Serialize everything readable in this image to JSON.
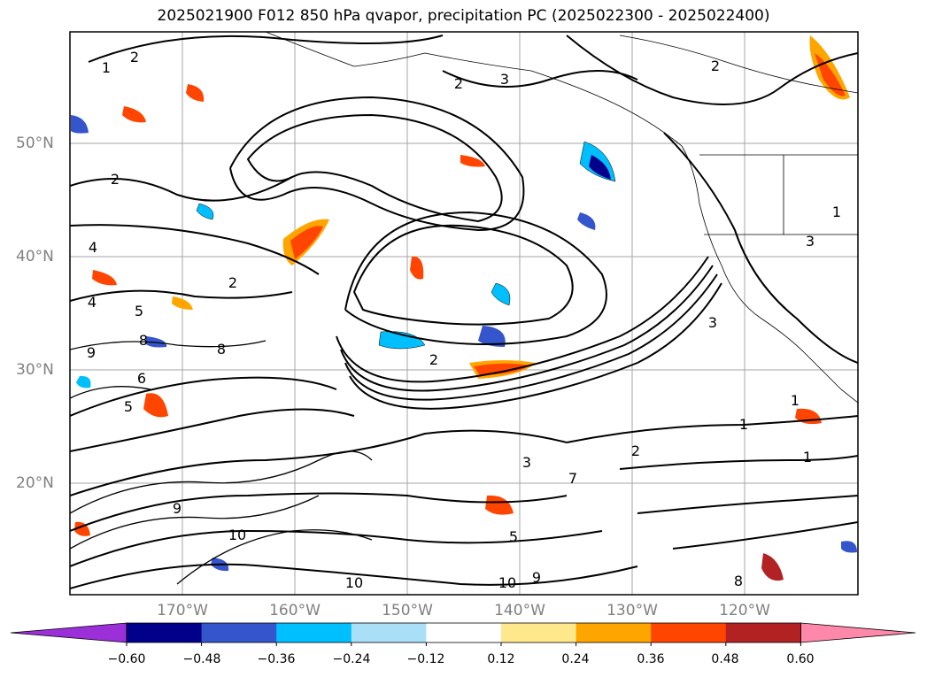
{
  "title": "2025021900 F012 850 hPa qvapor, precipitation PC (2025022300 - 2025022400)",
  "lat_labels": [
    "50°N",
    "40°N",
    "30°N",
    "20°N"
  ],
  "lon_labels": [
    "170°W",
    "160°W",
    "150°W",
    "140°W",
    "130°W",
    "120°W"
  ],
  "colorbar": {
    "tick_labels": [
      "−0.60",
      "−0.48",
      "−0.36",
      "−0.24",
      "−0.12",
      "0.12",
      "0.24",
      "0.36",
      "0.48",
      "0.60"
    ],
    "colors": [
      "#9b30d8",
      "#00008b",
      "#3555cc",
      "#00bfff",
      "#aadff8",
      "#ffffff",
      "#ffe88c",
      "#ffa500",
      "#ff4500",
      "#b22222",
      "#ff88aa"
    ]
  },
  "contour_labels": [
    "1",
    "2",
    "2",
    "3",
    "2",
    "2",
    "4",
    "4",
    "5",
    "8",
    "9",
    "6",
    "5",
    "8",
    "2",
    "1",
    "3",
    "3",
    "3",
    "7",
    "1",
    "2",
    "1",
    "2",
    "5",
    "10",
    "10",
    "9",
    "10",
    "9",
    "8",
    "1"
  ],
  "colors": {
    "contour": "#000000",
    "grid": "#808080",
    "frame": "#000000"
  }
}
